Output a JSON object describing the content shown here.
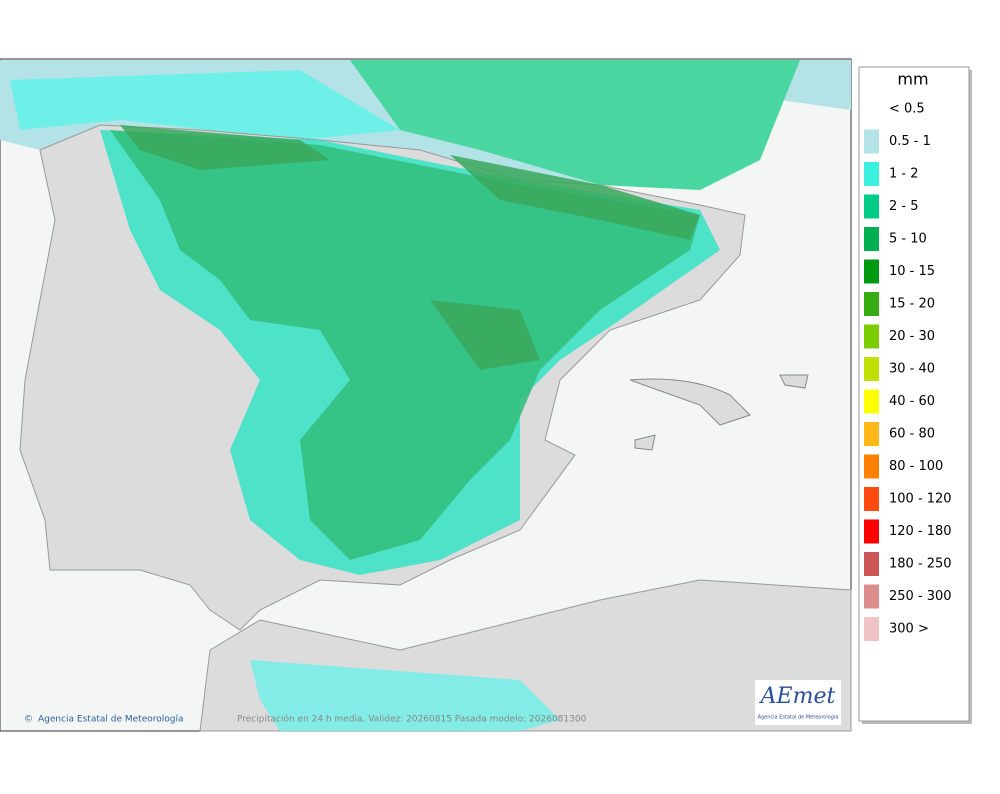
{
  "legend": {
    "title": "mm",
    "items": [
      {
        "label": "< 0.5"
      },
      {
        "label": "0.5 - 1",
        "color": "#b3e3e6"
      },
      {
        "label": "1 - 2",
        "color": "#3cf0e0"
      },
      {
        "label": "2 - 5",
        "color": "#00cc88"
      },
      {
        "label": "5 - 10",
        "color": "#00b050"
      },
      {
        "label": "10 - 15",
        "color": "#009a10"
      },
      {
        "label": "15 - 20",
        "color": "#36ab12"
      },
      {
        "label": "20 - 30",
        "color": "#7bcc00"
      },
      {
        "label": "30 - 40",
        "color": "#bfe000"
      },
      {
        "label": "40 - 60",
        "color": "#ffff00"
      },
      {
        "label": "60 - 80",
        "color": "#ffb818"
      },
      {
        "label": "80 - 100",
        "color": "#ff8000"
      },
      {
        "label": "100 - 120",
        "color": "#ff4a10"
      },
      {
        "label": "120 - 180",
        "color": "#ff0000"
      },
      {
        "label": "180 - 250",
        "color": "#cc5555"
      },
      {
        "label": "250 - 300",
        "color": "#dd8c8c"
      },
      {
        "label": "300 >",
        "color": "#efc4c4"
      }
    ]
  },
  "footer": {
    "credit": "Agencia Estatal de Meteorología",
    "caption": "Precipitación en 24 h media. Validez: 20260815 Pasada modelo: 2026081300"
  },
  "logo": {
    "text": "AEmet",
    "subtitle": "Agencia Estatal de Meteorología"
  }
}
